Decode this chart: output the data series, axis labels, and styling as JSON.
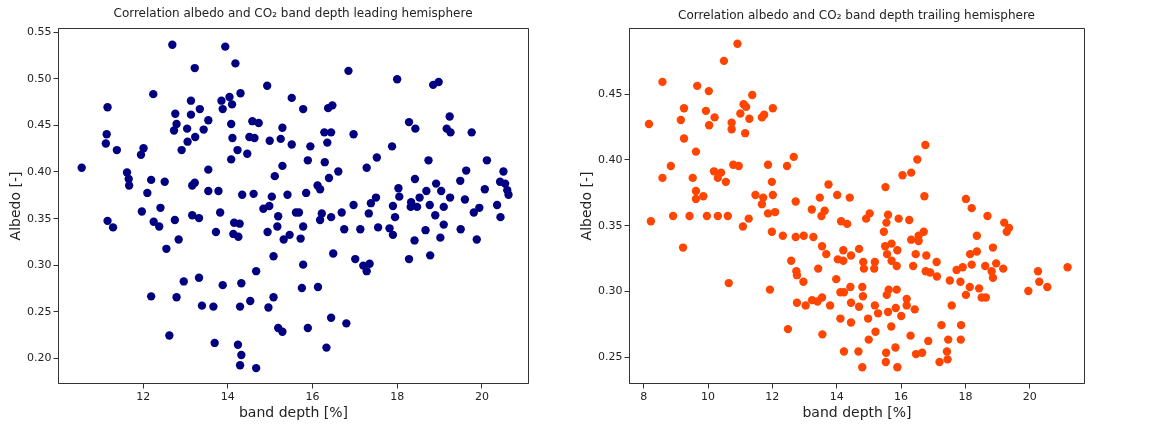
{
  "chart_data": [
    {
      "type": "scatter",
      "title": "Correlation albedo and CO₂ band depth leading hemisphere",
      "xlabel": "band depth [%]",
      "ylabel": "Albedo [-]",
      "marker": "circle",
      "xlim": [
        10.0,
        21.1
      ],
      "ylim": [
        0.173,
        0.554
      ],
      "xticks": [
        12,
        14,
        16,
        18,
        20
      ],
      "yticks": [
        {
          "value": 0.2,
          "label": "0.20"
        },
        {
          "value": 0.25,
          "label": "0.25"
        },
        {
          "value": 0.3,
          "label": "0.30"
        },
        {
          "value": 0.35,
          "label": "0.35"
        },
        {
          "value": 0.4,
          "label": "0.40"
        },
        {
          "value": 0.45,
          "label": "0.45"
        },
        {
          "value": 0.5,
          "label": "0.50"
        },
        {
          "value": 0.55,
          "label": "0.55"
        }
      ],
      "series": [
        {
          "color": "#000080",
          "x": [
            12.7,
            13.95,
            14.19,
            13.23,
            14.94,
            12.25,
            15.52,
            13.14,
            13.86,
            14.05,
            14.31,
            14.11,
            13.89,
            11.17,
            13.35,
            12.77,
            13.14,
            13.55,
            14.09,
            14.59,
            14.74,
            12.8,
            13.05,
            15.3,
            12.74,
            13.44,
            11.15,
            13.24,
            14.12,
            14.52,
            14.64,
            15.0,
            15.26,
            15.52,
            11.13,
            13.06,
            11.39,
            12.92,
            14.24,
            14.47,
            12.02,
            11.96,
            14.09,
            10.56,
            15.3,
            13.55,
            11.63,
            15.12,
            11.67,
            12.2,
            12.52,
            11.68,
            13.23,
            13.17,
            13.55,
            13.79,
            12.11,
            14.35,
            14.62,
            15.42,
            15.05,
            14.99,
            14.85,
            15.62,
            12.42,
            11.98,
            13.83,
            13.17,
            13.33,
            15.2,
            12.76,
            11.17,
            11.3,
            12.26,
            12.39,
            14.16,
            14.29,
            15.18,
            13.73,
            14.95,
            14.14,
            14.26,
            15.47,
            15.33,
            12.85,
            12.56,
            15.09,
            14.68,
            12.97,
            13.33,
            13.89,
            14.33,
            12.2,
            12.8,
            14.54,
            15.09,
            13.4,
            13.67,
            14.3,
            14.97,
            15.2,
            15.3,
            12.63,
            13.7,
            14.25,
            14.33,
            14.3,
            14.68,
            16.86,
            18.01,
            18.86,
            18.99,
            15.79,
            16.38,
            16.48,
            19.25,
            18.29,
            18.44,
            19.18,
            19.27,
            19.77,
            16.29,
            16.45,
            16.98,
            16.36,
            15.96,
            17.89,
            15.9,
            16.3,
            17.53,
            17.29,
            18.75,
            20.13,
            16.62,
            16.4,
            19.64,
            20.52,
            18.43,
            19.5,
            20.44,
            20.56,
            16.13,
            16.19,
            18.93,
            18.04,
            18.06,
            18.7,
            19.05,
            20.08,
            20.61,
            20.64,
            15.86,
            17.51,
            19.26,
            19.61,
            18.34,
            18.54,
            16.98,
            17.39,
            17.91,
            18.33,
            18.48,
            18.78,
            19.11,
            20.37,
            15.69,
            16.23,
            16.45,
            16.19,
            16.7,
            17.34,
            17.96,
            18.91,
            19.82,
            19.95,
            20.45,
            15.79,
            16.76,
            17.14,
            17.56,
            17.83,
            17.91,
            19.11,
            18.68,
            19.51,
            15.73,
            18.42,
            19.03,
            19.89,
            16.5,
            17.02,
            17.21,
            17.36,
            17.29,
            18.29,
            18.79,
            15.79,
            15.76,
            16.14,
            16.45,
            16.81,
            15.9,
            16.34
          ],
          "values": [
            0.536,
            0.534,
            0.516,
            0.511,
            0.492,
            0.483,
            0.479,
            0.476,
            0.476,
            0.48,
            0.484,
            0.472,
            0.467,
            0.469,
            0.467,
            0.462,
            0.461,
            0.455,
            0.451,
            0.454,
            0.452,
            0.451,
            0.446,
            0.447,
            0.444,
            0.445,
            0.44,
            0.437,
            0.436,
            0.437,
            0.436,
            0.433,
            0.435,
            0.429,
            0.43,
            0.432,
            0.423,
            0.423,
            0.423,
            0.419,
            0.425,
            0.418,
            0.413,
            0.404,
            0.406,
            0.402,
            0.399,
            0.395,
            0.392,
            0.391,
            0.389,
            0.385,
            0.388,
            0.385,
            0.379,
            0.379,
            0.377,
            0.375,
            0.376,
            0.375,
            0.373,
            0.363,
            0.36,
            0.356,
            0.361,
            0.357,
            0.356,
            0.353,
            0.35,
            0.352,
            0.348,
            0.347,
            0.34,
            0.346,
            0.341,
            0.345,
            0.344,
            0.341,
            0.335,
            0.335,
            0.333,
            0.33,
            0.332,
            0.327,
            0.327,
            0.317,
            0.309,
            0.293,
            0.282,
            0.286,
            0.278,
            0.28,
            0.266,
            0.265,
            0.261,
            0.265,
            0.256,
            0.255,
            0.255,
            0.254,
            0.232,
            0.228,
            0.224,
            0.216,
            0.214,
            0.203,
            0.192,
            0.189,
            0.508,
            0.499,
            0.493,
            0.496,
            0.467,
            0.468,
            0.471,
            0.459,
            0.453,
            0.446,
            0.446,
            0.442,
            0.442,
            0.442,
            0.442,
            0.44,
            0.431,
            0.427,
            0.427,
            0.412,
            0.41,
            0.415,
            0.404,
            0.412,
            0.412,
            0.4,
            0.393,
            0.401,
            0.4,
            0.392,
            0.39,
            0.389,
            0.387,
            0.385,
            0.381,
            0.387,
            0.382,
            0.373,
            0.379,
            0.379,
            0.381,
            0.38,
            0.375,
            0.377,
            0.372,
            0.372,
            0.37,
            0.367,
            0.372,
            0.364,
            0.366,
            0.363,
            0.362,
            0.362,
            0.364,
            0.362,
            0.364,
            0.356,
            0.355,
            0.351,
            0.348,
            0.356,
            0.355,
            0.351,
            0.353,
            0.356,
            0.361,
            0.351,
            0.341,
            0.338,
            0.338,
            0.34,
            0.339,
            0.332,
            0.343,
            0.337,
            0.338,
            0.328,
            0.326,
            0.329,
            0.327,
            0.312,
            0.306,
            0.299,
            0.301,
            0.293,
            0.306,
            0.31,
            0.3,
            0.275,
            0.276,
            0.243,
            0.237,
            0.232,
            0.211
          ]
        }
      ]
    },
    {
      "type": "scatter",
      "title": "Correlation albedo and CO₂ band depth trailing hemisphere",
      "xlabel": "band depth [%]",
      "ylabel": "Albedo [-]",
      "marker": "circle",
      "xlim": [
        7.56,
        21.7
      ],
      "ylim": [
        0.23,
        0.5
      ],
      "xticks": [
        8,
        10,
        12,
        14,
        16,
        18,
        20
      ],
      "yticks": [
        {
          "value": 0.25,
          "label": "0.25"
        },
        {
          "value": 0.3,
          "label": "0.30"
        },
        {
          "value": 0.35,
          "label": "0.35"
        },
        {
          "value": 0.4,
          "label": "0.40"
        },
        {
          "value": 0.45,
          "label": "0.45"
        }
      ],
      "series": [
        {
          "color": "#ff4500",
          "x": [
            10.93,
            10.51,
            8.6,
            9.68,
            10.04,
            11.39,
            9.27,
            9.95,
            11.12,
            11.2,
            11.02,
            12.03,
            9.17,
            10.22,
            10.05,
            8.18,
            10.75,
            10.75,
            11.3,
            11.69,
            11.76,
            11.17,
            9.27,
            9.64,
            8.86,
            10.8,
            10.97,
            11.88,
            12.68,
            12.47,
            8.6,
            9.54,
            10.2,
            10.42,
            10.32,
            10.57,
            12.0,
            9.64,
            9.87,
            9.64,
            11.49,
            11.73,
            11.69,
            12.03,
            12.74,
            8.24,
            8.93,
            9.44,
            9.98,
            10.32,
            10.63,
            11.28,
            11.1,
            11.88,
            12.1,
            13.49,
            13.76,
            14.03,
            13.24,
            13.64,
            13.54,
            14.42,
            14.15,
            14.34,
            12.0,
            12.34,
            12.74,
            12.99,
            13.29,
            13.56,
            13.69,
            9.24,
            14.22,
            14.05,
            14.22,
            14.46,
            12.6,
            12.76,
            12.78,
            13.44,
            12.98,
            14.0,
            10.66,
            11.94,
            14.13,
            14.24,
            14.44,
            12.78,
            13.05,
            13.25,
            13.42,
            13.56,
            13.81,
            14.46,
            14.13,
            14.46,
            12.5,
            13.57,
            14.24,
            16.77,
            16.52,
            16.06,
            16.33,
            15.53,
            16.74,
            18.03,
            18.21,
            18.7,
            19.22,
            19.37,
            19.3,
            14.93,
            15.04,
            15.61,
            15.56,
            15.48,
            15.94,
            16.27,
            16.33,
            16.56,
            16.72,
            16.56,
            15.52,
            15.72,
            15.58,
            15.9,
            15.72,
            15.88,
            18.37,
            18.16,
            18.37,
            18.87,
            16.47,
            16.8,
            17.12,
            16.39,
            16.78,
            16.92,
            17.13,
            14.71,
            14.84,
            14.86,
            15.2,
            15.18,
            17.74,
            17.93,
            18.21,
            18.63,
            18.83,
            18.97,
            19.19,
            18.87,
            20.27,
            20.31,
            20.56,
            21.19,
            19.97,
            17.53,
            17.86,
            18.15,
            18.03,
            18.44,
            18.52,
            18.65,
            17.59,
            14.81,
            14.83,
            15.57,
            15.63,
            15.88,
            16.19,
            16.19,
            16.44,
            14.71,
            15.2,
            15.3,
            15.61,
            15.85,
            16.02,
            14.99,
            15.71,
            15.22,
            15.01,
            16.31,
            16.86,
            17.27,
            17.88,
            17.48,
            17.87,
            17.44,
            14.69,
            15.55,
            15.84,
            16.48,
            16.67,
            17.21,
            17.46,
            15.54,
            14.81,
            15.9
          ],
          "values": [
            0.488,
            0.475,
            0.459,
            0.456,
            0.452,
            0.449,
            0.439,
            0.437,
            0.442,
            0.44,
            0.435,
            0.439,
            0.43,
            0.432,
            0.426,
            0.427,
            0.428,
            0.423,
            0.431,
            0.432,
            0.434,
            0.42,
            0.416,
            0.406,
            0.395,
            0.396,
            0.395,
            0.396,
            0.402,
            0.395,
            0.386,
            0.386,
            0.391,
            0.39,
            0.386,
            0.383,
            0.383,
            0.376,
            0.372,
            0.37,
            0.373,
            0.371,
            0.366,
            0.373,
            0.368,
            0.353,
            0.357,
            0.357,
            0.357,
            0.357,
            0.357,
            0.355,
            0.349,
            0.359,
            0.36,
            0.371,
            0.381,
            0.373,
            0.362,
            0.361,
            0.357,
            0.371,
            0.353,
            0.351,
            0.345,
            0.342,
            0.341,
            0.342,
            0.341,
            0.334,
            0.328,
            0.333,
            0.331,
            0.324,
            0.323,
            0.327,
            0.323,
            0.315,
            0.312,
            0.317,
            0.307,
            0.309,
            0.306,
            0.301,
            0.299,
            0.299,
            0.303,
            0.291,
            0.289,
            0.293,
            0.292,
            0.295,
            0.289,
            0.291,
            0.279,
            0.276,
            0.271,
            0.267,
            0.254,
            0.411,
            0.4,
            0.388,
            0.39,
            0.379,
            0.372,
            0.37,
            0.363,
            0.357,
            0.352,
            0.348,
            0.345,
            0.355,
            0.359,
            0.358,
            0.352,
            0.345,
            0.355,
            0.354,
            0.339,
            0.342,
            0.345,
            0.338,
            0.334,
            0.336,
            0.328,
            0.331,
            0.323,
            0.319,
            0.342,
            0.328,
            0.33,
            0.333,
            0.328,
            0.327,
            0.322,
            0.319,
            0.315,
            0.314,
            0.311,
            0.332,
            0.322,
            0.317,
            0.322,
            0.317,
            0.316,
            0.318,
            0.32,
            0.319,
            0.315,
            0.321,
            0.317,
            0.31,
            0.315,
            0.307,
            0.303,
            0.318,
            0.3,
            0.308,
            0.307,
            0.303,
            0.297,
            0.302,
            0.295,
            0.295,
            0.289,
            0.303,
            0.296,
            0.297,
            0.301,
            0.301,
            0.294,
            0.289,
            0.286,
            0.288,
            0.289,
            0.283,
            0.284,
            0.287,
            0.281,
            0.279,
            0.273,
            0.269,
            0.263,
            0.266,
            0.262,
            0.274,
            0.274,
            0.263,
            0.263,
            0.254,
            0.254,
            0.253,
            0.257,
            0.252,
            0.253,
            0.246,
            0.248,
            0.246,
            0.242,
            0.242
          ]
        }
      ]
    }
  ]
}
